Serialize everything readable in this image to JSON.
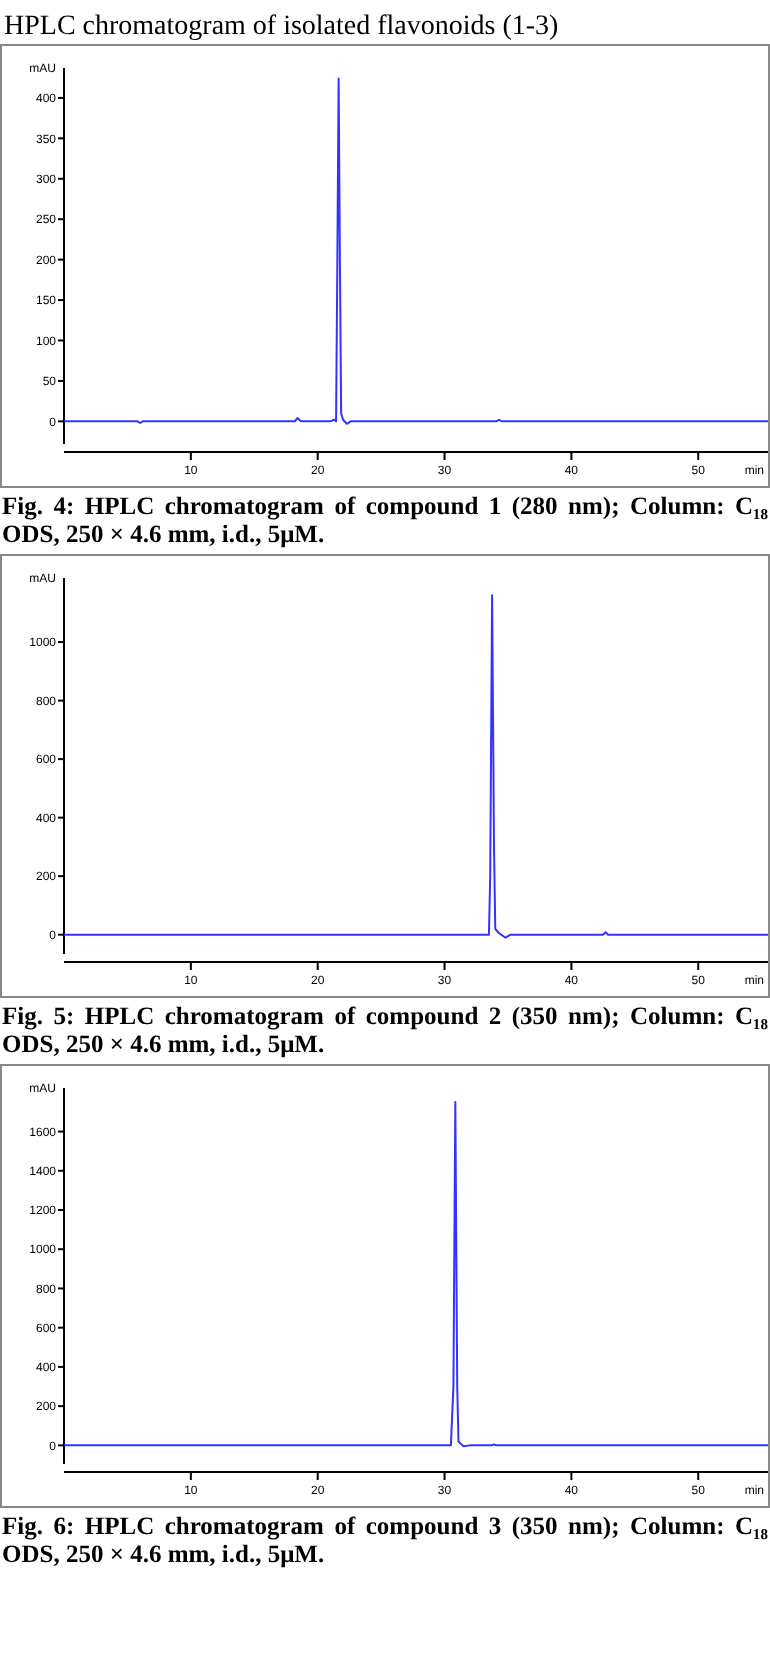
{
  "chart_data": [
    {
      "type": "line",
      "title": "HPLC chromatogram of isolated flavonoids (1-3)",
      "xlabel": "min",
      "ylabel": "mAU",
      "annotations": [
        "Fig. 4: HPLC chromatogram of compound 1 (280 nm); Column: C₁₈ ODS, 250 × 4.6 mm, i.d., 5μM."
      ],
      "xlim": [
        0,
        55.5
      ],
      "xticks": [
        10,
        20,
        30,
        40,
        50
      ],
      "ylim": [
        -28,
        437
      ],
      "yticks": [
        0,
        50,
        100,
        150,
        200,
        250,
        300,
        350,
        400
      ],
      "series": [
        {
          "color": "#3333ff",
          "x": [
            0,
            5.8,
            6.0,
            6.2,
            18.2,
            18.4,
            18.7,
            21.0,
            21.3,
            21.45,
            21.55,
            21.65,
            21.75,
            21.85,
            22,
            22.3,
            22.6,
            34.1,
            34.3,
            34.5,
            55.5
          ],
          "values": [
            0,
            0,
            -2,
            0,
            0,
            4,
            0,
            0,
            2,
            0,
            200,
            424,
            200,
            10,
            2,
            -3,
            0,
            0,
            2,
            0,
            0
          ]
        }
      ]
    },
    {
      "type": "line",
      "xlabel": "min",
      "ylabel": "mAU",
      "annotations": [
        "Fig. 5: HPLC chromatogram of compound 2 (350 nm); Column: C₁₈ ODS, 250 × 4.6 mm, i.d., 5μM."
      ],
      "xlim": [
        0,
        55.5
      ],
      "xticks": [
        10,
        20,
        30,
        40,
        50
      ],
      "ylim": [
        -66,
        1219
      ],
      "yticks": [
        0,
        200,
        400,
        600,
        800,
        1000
      ],
      "series": [
        {
          "color": "#3333ff",
          "x": [
            0,
            30,
            33.5,
            33.6,
            33.75,
            33.9,
            34.0,
            34.3,
            34.8,
            35.2,
            42.5,
            42.7,
            42.9,
            55.5
          ],
          "values": [
            0,
            0,
            0,
            200,
            1160,
            300,
            20,
            5,
            -10,
            0,
            0,
            8,
            0,
            0
          ]
        }
      ]
    },
    {
      "type": "line",
      "xlabel": "min",
      "ylabel": "mAU",
      "annotations": [
        "Fig. 6: HPLC chromatogram of compound 3 (350 nm); Column: C₁₈ ODS, 250 × 4.6 mm, i.d., 5μM."
      ],
      "xlim": [
        0,
        55.5
      ],
      "xticks": [
        10,
        20,
        30,
        40,
        50
      ],
      "ylim": [
        -95,
        1822
      ],
      "yticks": [
        0,
        200,
        400,
        600,
        800,
        1000,
        1200,
        1400,
        1600
      ],
      "series": [
        {
          "color": "#3333ff",
          "x": [
            0,
            30.5,
            30.7,
            30.85,
            31.0,
            31.1,
            31.5,
            32,
            33.7,
            33.9,
            34.1,
            55.5
          ],
          "values": [
            0,
            0,
            300,
            1750,
            300,
            20,
            -5,
            0,
            0,
            5,
            0,
            0
          ]
        }
      ]
    }
  ]
}
